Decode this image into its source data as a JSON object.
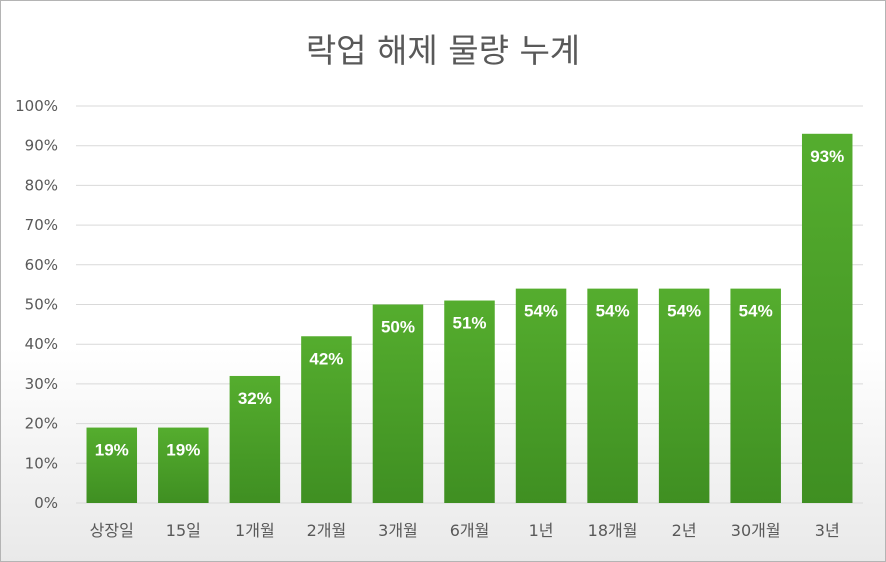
{
  "chart_data": {
    "type": "bar",
    "title": "락업 해제 물량 누계",
    "xlabel": "",
    "ylabel": "",
    "categories": [
      "상장일",
      "15일",
      "1개월",
      "2개월",
      "3개월",
      "6개월",
      "1년",
      "18개월",
      "2년",
      "30개월",
      "3년"
    ],
    "values": [
      19,
      19,
      32,
      42,
      50,
      51,
      54,
      54,
      54,
      54,
      93
    ],
    "data_labels": [
      "19%",
      "19%",
      "32%",
      "42%",
      "50%",
      "51%",
      "54%",
      "54%",
      "54%",
      "54%",
      "93%"
    ],
    "ylim": [
      0,
      100
    ],
    "yticks": [
      0,
      10,
      20,
      30,
      40,
      50,
      60,
      70,
      80,
      90,
      100
    ],
    "ytick_labels": [
      "0%",
      "10%",
      "20%",
      "30%",
      "40%",
      "50%",
      "60%",
      "70%",
      "80%",
      "90%",
      "100%"
    ],
    "grid": true,
    "legend": "none",
    "colors": {
      "bar_top": "#55ad2e",
      "bar_bottom": "#3f8f22",
      "gridline": "#d9d9d9",
      "text": "#595959",
      "label": "#ffffff"
    }
  }
}
